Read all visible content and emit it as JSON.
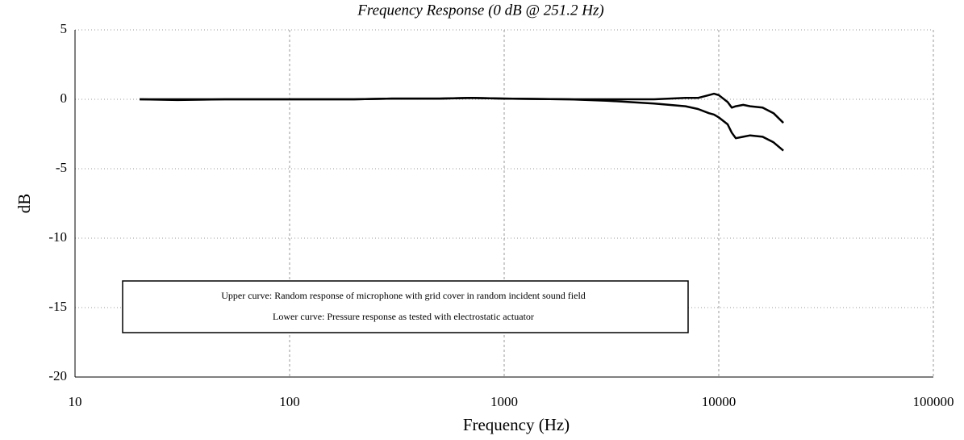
{
  "chart_data": {
    "type": "line",
    "title": "Frequency Response (0 dB @ 251.2 Hz)",
    "x_label": "Frequency (Hz)",
    "y_label": "dB",
    "annotations": [
      "Upper curve: Random response of microphone with grid cover in random incident sound field",
      "Lower curve: Pressure response as tested with electrostatic actuator"
    ],
    "x": [
      20,
      30,
      50,
      100,
      200,
      300,
      500,
      700,
      1000,
      2000,
      3000,
      5000,
      7000,
      8000,
      9000,
      9500,
      10000,
      11000,
      11500,
      12000,
      13000,
      14000,
      16000,
      18000,
      20000
    ],
    "series": [
      {
        "color": "#000000",
        "values": [
          0,
          0,
          0,
          0,
          0,
          0.05,
          0.05,
          0.1,
          0.05,
          0,
          0,
          0,
          0.1,
          0.1,
          0.3,
          0.4,
          0.3,
          -0.2,
          -0.6,
          -0.5,
          -0.4,
          -0.5,
          -0.6,
          -1.0,
          -1.7
        ]
      },
      {
        "color": "#000000",
        "values": [
          0,
          -0.05,
          0,
          0,
          0,
          0.05,
          0.05,
          0.1,
          0.05,
          0,
          -0.1,
          -0.3,
          -0.5,
          -0.7,
          -1.0,
          -1.1,
          -1.3,
          -1.8,
          -2.4,
          -2.8,
          -2.7,
          -2.6,
          -2.7,
          -3.1,
          -3.7
        ]
      }
    ],
    "xscale": "log",
    "xlim": [
      10,
      100000
    ],
    "xticks": [
      10,
      100,
      1000,
      10000,
      100000
    ],
    "ylim": [
      -20,
      5
    ],
    "yticks": [
      5,
      0,
      -5,
      -10,
      -15,
      -20
    ],
    "grid": true
  }
}
